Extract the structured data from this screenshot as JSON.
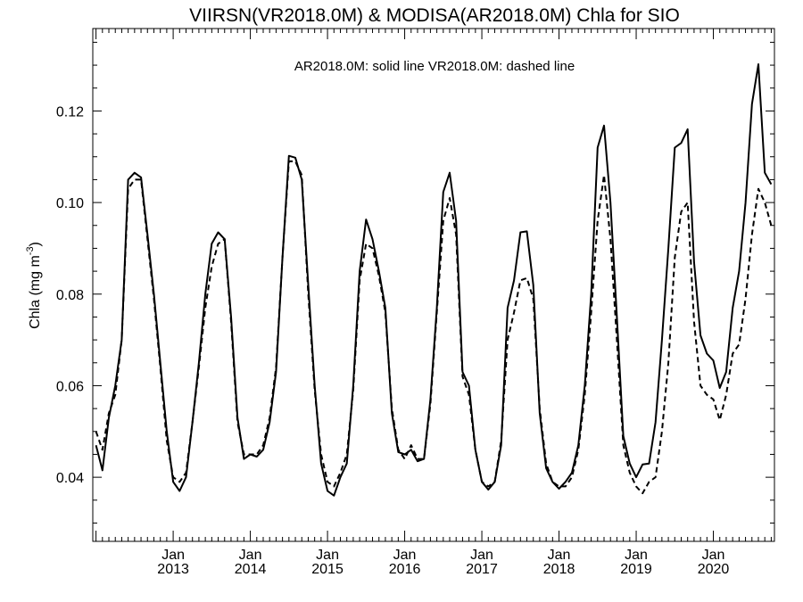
{
  "chart_data": {
    "type": "line",
    "title": "VIIRSN(VR2018.0M) & MODISA(AR2018.0M)  Chla for SIO",
    "annotation": "AR2018.0M: solid line   VR2018.0M: dashed line",
    "ylabel": "Chla (mg m",
    "ylabel_superscript": "-3",
    "ylabel_close": ")",
    "xlabel": "",
    "xlim": [
      "2012-01",
      "2020-10"
    ],
    "ylim": [
      0.026,
      0.138
    ],
    "yticks": [
      0.04,
      0.06,
      0.08,
      0.1,
      0.12
    ],
    "ytick_labels": [
      "0.04",
      "0.06",
      "0.08",
      "0.10",
      "0.12"
    ],
    "xticks": [
      {
        "month": "Jan",
        "year": "2013",
        "date": "2013-01"
      },
      {
        "month": "Jan",
        "year": "2014",
        "date": "2014-01"
      },
      {
        "month": "Jan",
        "year": "2015",
        "date": "2015-01"
      },
      {
        "month": "Jan",
        "year": "2016",
        "date": "2016-01"
      },
      {
        "month": "Jan",
        "year": "2017",
        "date": "2017-01"
      },
      {
        "month": "Jan",
        "year": "2018",
        "date": "2018-01"
      },
      {
        "month": "Jan",
        "year": "2019",
        "date": "2019-01"
      },
      {
        "month": "Jan",
        "year": "2020",
        "date": "2020-01"
      }
    ],
    "grid": false,
    "legend": "none",
    "x": [
      "2012-01",
      "2012-02",
      "2012-03",
      "2012-04",
      "2012-05",
      "2012-06",
      "2012-07",
      "2012-08",
      "2012-09",
      "2012-10",
      "2012-11",
      "2012-12",
      "2013-01",
      "2013-02",
      "2013-03",
      "2013-04",
      "2013-05",
      "2013-06",
      "2013-07",
      "2013-08",
      "2013-09",
      "2013-10",
      "2013-11",
      "2013-12",
      "2014-01",
      "2014-02",
      "2014-03",
      "2014-04",
      "2014-05",
      "2014-06",
      "2014-07",
      "2014-08",
      "2014-09",
      "2014-10",
      "2014-11",
      "2014-12",
      "2015-01",
      "2015-02",
      "2015-03",
      "2015-04",
      "2015-05",
      "2015-06",
      "2015-07",
      "2015-08",
      "2015-09",
      "2015-10",
      "2015-11",
      "2015-12",
      "2016-01",
      "2016-02",
      "2016-03",
      "2016-04",
      "2016-05",
      "2016-06",
      "2016-07",
      "2016-08",
      "2016-09",
      "2016-10",
      "2016-11",
      "2016-12",
      "2017-01",
      "2017-02",
      "2017-03",
      "2017-04",
      "2017-05",
      "2017-06",
      "2017-07",
      "2017-08",
      "2017-09",
      "2017-10",
      "2017-11",
      "2017-12",
      "2018-01",
      "2018-02",
      "2018-03",
      "2018-04",
      "2018-05",
      "2018-06",
      "2018-07",
      "2018-08",
      "2018-09",
      "2018-10",
      "2018-11",
      "2018-12",
      "2019-01",
      "2019-02",
      "2019-03",
      "2019-04",
      "2019-05",
      "2019-06",
      "2019-07",
      "2019-08",
      "2019-09",
      "2019-10",
      "2019-11",
      "2019-12",
      "2020-01",
      "2020-02",
      "2020-03",
      "2020-04",
      "2020-05",
      "2020-06",
      "2020-07",
      "2020-08",
      "2020-09",
      "2020-10"
    ],
    "series": [
      {
        "style": "solid",
        "values": [
          0.047,
          0.0415,
          0.053,
          0.06,
          0.07,
          0.105,
          0.1065,
          0.1055,
          0.093,
          0.08,
          0.065,
          0.05,
          0.039,
          0.037,
          0.04,
          0.052,
          0.065,
          0.08,
          0.091,
          0.0935,
          0.092,
          0.075,
          0.053,
          0.044,
          0.045,
          0.0445,
          0.046,
          0.052,
          0.063,
          0.088,
          0.1102,
          0.1098,
          0.105,
          0.082,
          0.06,
          0.043,
          0.037,
          0.036,
          0.04,
          0.043,
          0.06,
          0.085,
          0.0963,
          0.092,
          0.085,
          0.077,
          0.054,
          0.0455,
          0.045,
          0.046,
          0.0435,
          0.044,
          0.057,
          0.077,
          0.1023,
          0.1065,
          0.096,
          0.063,
          0.06,
          0.046,
          0.039,
          0.0373,
          0.039,
          0.047,
          0.077,
          0.083,
          0.0935,
          0.0937,
          0.082,
          0.054,
          0.042,
          0.039,
          0.0375,
          0.039,
          0.041,
          0.047,
          0.06,
          0.08,
          0.112,
          0.1168,
          0.1,
          0.075,
          0.049,
          0.043,
          0.04,
          0.0428,
          0.043,
          0.052,
          0.07,
          0.09,
          0.112,
          0.113,
          0.116,
          0.087,
          0.071,
          0.067,
          0.0655,
          0.0595,
          0.063,
          0.077,
          0.085,
          0.1,
          0.1215,
          0.1302,
          0.1065,
          0.104
        ]
      },
      {
        "style": "dashed",
        "values": [
          0.05,
          0.046,
          0.054,
          0.058,
          0.07,
          0.103,
          0.105,
          0.105,
          0.092,
          0.079,
          0.064,
          0.048,
          0.04,
          0.039,
          0.041,
          0.052,
          0.064,
          0.077,
          0.086,
          0.091,
          0.092,
          0.074,
          0.052,
          0.045,
          0.045,
          0.045,
          0.047,
          0.053,
          0.064,
          0.088,
          0.109,
          0.109,
          0.106,
          0.08,
          0.059,
          0.045,
          0.039,
          0.038,
          0.041,
          0.045,
          0.059,
          0.083,
          0.091,
          0.09,
          0.084,
          0.076,
          0.055,
          0.046,
          0.044,
          0.047,
          0.044,
          0.044,
          0.056,
          0.076,
          0.096,
          0.101,
          0.093,
          0.062,
          0.058,
          0.046,
          0.039,
          0.038,
          0.039,
          0.048,
          0.07,
          0.076,
          0.083,
          0.0835,
          0.079,
          0.055,
          0.043,
          0.039,
          0.038,
          0.038,
          0.04,
          0.046,
          0.058,
          0.076,
          0.096,
          0.106,
          0.092,
          0.07,
          0.047,
          0.041,
          0.038,
          0.0365,
          0.039,
          0.04,
          0.05,
          0.065,
          0.088,
          0.098,
          0.1,
          0.074,
          0.06,
          0.058,
          0.057,
          0.0525,
          0.058,
          0.067,
          0.069,
          0.079,
          0.093,
          0.103,
          0.1,
          0.095
        ]
      }
    ]
  }
}
